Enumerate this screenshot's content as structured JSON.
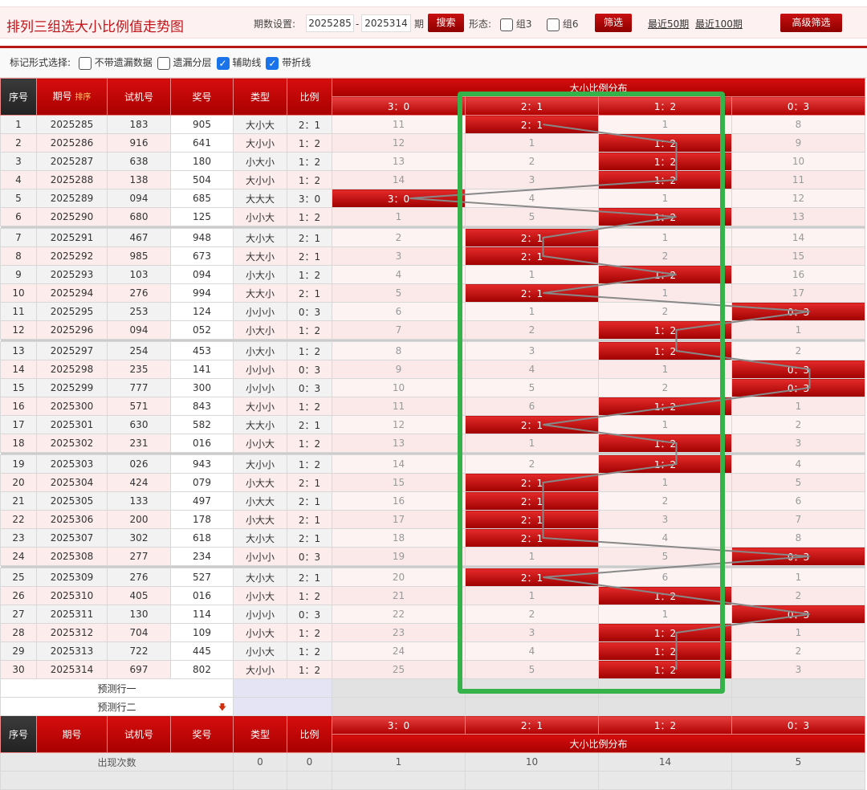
{
  "header": {
    "title": "排列三组选大小比例值走势图",
    "period_label": "期数设置:",
    "period_from": "2025285",
    "dash": "-",
    "period_to": "2025314",
    "period_unit": "期",
    "search": "搜索",
    "form_label": "形态:",
    "group3": "组3",
    "group6": "组6",
    "filter": "筛选",
    "recent50": "最近50期",
    "recent100": "最近100期",
    "advanced": "高级筛选"
  },
  "options": {
    "label": "标记形式选择:",
    "items": [
      {
        "label": "不带遗漏数据",
        "checked": false
      },
      {
        "label": "遗漏分层",
        "checked": false
      },
      {
        "label": "辅助线",
        "checked": true
      },
      {
        "label": "带折线",
        "checked": true
      }
    ]
  },
  "table": {
    "headers": {
      "seq": "序号",
      "issue": "期号",
      "sort": "排序",
      "test": "试机号",
      "prize": "奖号",
      "type": "类型",
      "ratio": "比例",
      "dist": "大小比例分布",
      "cols": [
        "3：0",
        "2：1",
        "1：2",
        "0：3"
      ]
    },
    "rows": [
      {
        "seq": "1",
        "issue": "2025285",
        "test": "183",
        "prize": "905",
        "type": "大小大",
        "ratio": "2：1",
        "cells": [
          "11",
          "2：1",
          "1",
          "8"
        ]
      },
      {
        "seq": "2",
        "issue": "2025286",
        "test": "916",
        "prize": "641",
        "type": "大小小",
        "ratio": "1：2",
        "cells": [
          "12",
          "1",
          "1：2",
          "9"
        ]
      },
      {
        "seq": "3",
        "issue": "2025287",
        "test": "638",
        "prize": "180",
        "type": "小大小",
        "ratio": "1：2",
        "cells": [
          "13",
          "2",
          "1：2",
          "10"
        ]
      },
      {
        "seq": "4",
        "issue": "2025288",
        "test": "138",
        "prize": "504",
        "type": "大小小",
        "ratio": "1：2",
        "cells": [
          "14",
          "3",
          "1：2",
          "11"
        ]
      },
      {
        "seq": "5",
        "issue": "2025289",
        "test": "094",
        "prize": "685",
        "type": "大大大",
        "ratio": "3：0",
        "cells": [
          "3：0",
          "4",
          "1",
          "12"
        ]
      },
      {
        "seq": "6",
        "issue": "2025290",
        "test": "680",
        "prize": "125",
        "type": "小小大",
        "ratio": "1：2",
        "cells": [
          "1",
          "5",
          "1：2",
          "13"
        ]
      },
      {
        "seq": "7",
        "issue": "2025291",
        "test": "467",
        "prize": "948",
        "type": "大小大",
        "ratio": "2：1",
        "cells": [
          "2",
          "2：1",
          "1",
          "14"
        ]
      },
      {
        "seq": "8",
        "issue": "2025292",
        "test": "985",
        "prize": "673",
        "type": "大大小",
        "ratio": "2：1",
        "cells": [
          "3",
          "2：1",
          "2",
          "15"
        ]
      },
      {
        "seq": "9",
        "issue": "2025293",
        "test": "103",
        "prize": "094",
        "type": "小大小",
        "ratio": "1：2",
        "cells": [
          "4",
          "1",
          "1：2",
          "16"
        ]
      },
      {
        "seq": "10",
        "issue": "2025294",
        "test": "276",
        "prize": "994",
        "type": "大大小",
        "ratio": "2：1",
        "cells": [
          "5",
          "2：1",
          "1",
          "17"
        ]
      },
      {
        "seq": "11",
        "issue": "2025295",
        "test": "253",
        "prize": "124",
        "type": "小小小",
        "ratio": "0：3",
        "cells": [
          "6",
          "1",
          "2",
          "0：3"
        ]
      },
      {
        "seq": "12",
        "issue": "2025296",
        "test": "094",
        "prize": "052",
        "type": "小大小",
        "ratio": "1：2",
        "cells": [
          "7",
          "2",
          "1：2",
          "1"
        ]
      },
      {
        "seq": "13",
        "issue": "2025297",
        "test": "254",
        "prize": "453",
        "type": "小大小",
        "ratio": "1：2",
        "cells": [
          "8",
          "3",
          "1：2",
          "2"
        ]
      },
      {
        "seq": "14",
        "issue": "2025298",
        "test": "235",
        "prize": "141",
        "type": "小小小",
        "ratio": "0：3",
        "cells": [
          "9",
          "4",
          "1",
          "0：3"
        ]
      },
      {
        "seq": "15",
        "issue": "2025299",
        "test": "777",
        "prize": "300",
        "type": "小小小",
        "ratio": "0：3",
        "cells": [
          "10",
          "5",
          "2",
          "0：3"
        ]
      },
      {
        "seq": "16",
        "issue": "2025300",
        "test": "571",
        "prize": "843",
        "type": "大小小",
        "ratio": "1：2",
        "cells": [
          "11",
          "6",
          "1：2",
          "1"
        ]
      },
      {
        "seq": "17",
        "issue": "2025301",
        "test": "630",
        "prize": "582",
        "type": "大大小",
        "ratio": "2：1",
        "cells": [
          "12",
          "2：1",
          "1",
          "2"
        ]
      },
      {
        "seq": "18",
        "issue": "2025302",
        "test": "231",
        "prize": "016",
        "type": "小小大",
        "ratio": "1：2",
        "cells": [
          "13",
          "1",
          "1：2",
          "3"
        ]
      },
      {
        "seq": "19",
        "issue": "2025303",
        "test": "026",
        "prize": "943",
        "type": "大小小",
        "ratio": "1：2",
        "cells": [
          "14",
          "2",
          "1：2",
          "4"
        ]
      },
      {
        "seq": "20",
        "issue": "2025304",
        "test": "424",
        "prize": "079",
        "type": "小大大",
        "ratio": "2：1",
        "cells": [
          "15",
          "2：1",
          "1",
          "5"
        ]
      },
      {
        "seq": "21",
        "issue": "2025305",
        "test": "133",
        "prize": "497",
        "type": "小大大",
        "ratio": "2：1",
        "cells": [
          "16",
          "2：1",
          "2",
          "6"
        ]
      },
      {
        "seq": "22",
        "issue": "2025306",
        "test": "200",
        "prize": "178",
        "type": "小大大",
        "ratio": "2：1",
        "cells": [
          "17",
          "2：1",
          "3",
          "7"
        ]
      },
      {
        "seq": "23",
        "issue": "2025307",
        "test": "302",
        "prize": "618",
        "type": "大小大",
        "ratio": "2：1",
        "cells": [
          "18",
          "2：1",
          "4",
          "8"
        ]
      },
      {
        "seq": "24",
        "issue": "2025308",
        "test": "277",
        "prize": "234",
        "type": "小小小",
        "ratio": "0：3",
        "cells": [
          "19",
          "1",
          "5",
          "0：3"
        ]
      },
      {
        "seq": "25",
        "issue": "2025309",
        "test": "276",
        "prize": "527",
        "type": "大小大",
        "ratio": "2：1",
        "cells": [
          "20",
          "2：1",
          "6",
          "1"
        ]
      },
      {
        "seq": "26",
        "issue": "2025310",
        "test": "405",
        "prize": "016",
        "type": "小小大",
        "ratio": "1：2",
        "cells": [
          "21",
          "1",
          "1：2",
          "2"
        ]
      },
      {
        "seq": "27",
        "issue": "2025311",
        "test": "130",
        "prize": "114",
        "type": "小小小",
        "ratio": "0：3",
        "cells": [
          "22",
          "2",
          "1",
          "0：3"
        ]
      },
      {
        "seq": "28",
        "issue": "2025312",
        "test": "704",
        "prize": "109",
        "type": "小小大",
        "ratio": "1：2",
        "cells": [
          "23",
          "3",
          "1：2",
          "1"
        ]
      },
      {
        "seq": "29",
        "issue": "2025313",
        "test": "722",
        "prize": "445",
        "type": "小小大",
        "ratio": "1：2",
        "cells": [
          "24",
          "4",
          "1：2",
          "2"
        ]
      },
      {
        "seq": "30",
        "issue": "2025314",
        "test": "697",
        "prize": "802",
        "type": "大小小",
        "ratio": "1：2",
        "cells": [
          "25",
          "5",
          "1：2",
          "3"
        ]
      }
    ],
    "predict": [
      "预测行一",
      "预测行二"
    ],
    "stats": {
      "label": "出现次数",
      "type": "0",
      "ratio": "0",
      "cols": [
        "1",
        "10",
        "14",
        "5"
      ]
    }
  },
  "colors": {
    "accent": "#c00000",
    "highlight_box": "#36b24a",
    "trend_line": "#888888"
  }
}
